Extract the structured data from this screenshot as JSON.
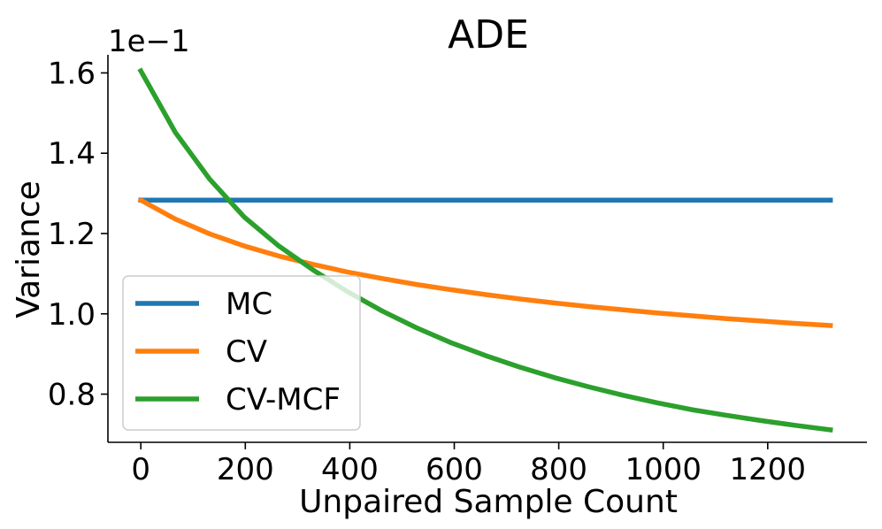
{
  "chart_data": {
    "type": "line",
    "title": "ADE",
    "xlabel": "Unpaired Sample Count",
    "ylabel": "Variance",
    "offset_label": "1e−1",
    "xlim": [
      -63,
      1390
    ],
    "ylim": [
      0.68,
      1.645
    ],
    "xticks": [
      0,
      200,
      400,
      600,
      800,
      1000,
      1200
    ],
    "xtick_labels": [
      "0",
      "200",
      "400",
      "600",
      "800",
      "1000",
      "1200"
    ],
    "yticks": [
      0.8,
      1.0,
      1.2,
      1.4,
      1.6
    ],
    "ytick_labels": [
      "0.8",
      "1.0",
      "1.2",
      "1.4",
      "1.6"
    ],
    "grid": false,
    "legend_position": "lower-left",
    "colors": {
      "MC": "#1f77b4",
      "CV": "#ff7f0e",
      "CV-MCF": "#2ca02c"
    },
    "x": [
      0,
      66,
      132,
      198,
      264,
      330,
      396,
      462,
      528,
      594,
      660,
      726,
      792,
      858,
      924,
      990,
      1056,
      1122,
      1188,
      1254,
      1320
    ],
    "series": [
      {
        "name": "MC",
        "values": [
          1.283,
          1.283,
          1.283,
          1.283,
          1.283,
          1.283,
          1.283,
          1.283,
          1.283,
          1.283,
          1.283,
          1.283,
          1.283,
          1.283,
          1.283,
          1.283,
          1.283,
          1.283,
          1.283,
          1.283,
          1.283
        ]
      },
      {
        "name": "CV",
        "values": [
          1.283,
          1.236,
          1.199,
          1.169,
          1.144,
          1.123,
          1.104,
          1.088,
          1.073,
          1.06,
          1.048,
          1.037,
          1.027,
          1.018,
          1.01,
          1.002,
          0.995,
          0.988,
          0.982,
          0.976,
          0.971
        ]
      },
      {
        "name": "CV-MCF",
        "values": [
          1.605,
          1.452,
          1.335,
          1.241,
          1.169,
          1.109,
          1.055,
          1.007,
          0.965,
          0.928,
          0.896,
          0.867,
          0.841,
          0.818,
          0.797,
          0.778,
          0.761,
          0.747,
          0.734,
          0.722,
          0.711
        ]
      }
    ]
  }
}
